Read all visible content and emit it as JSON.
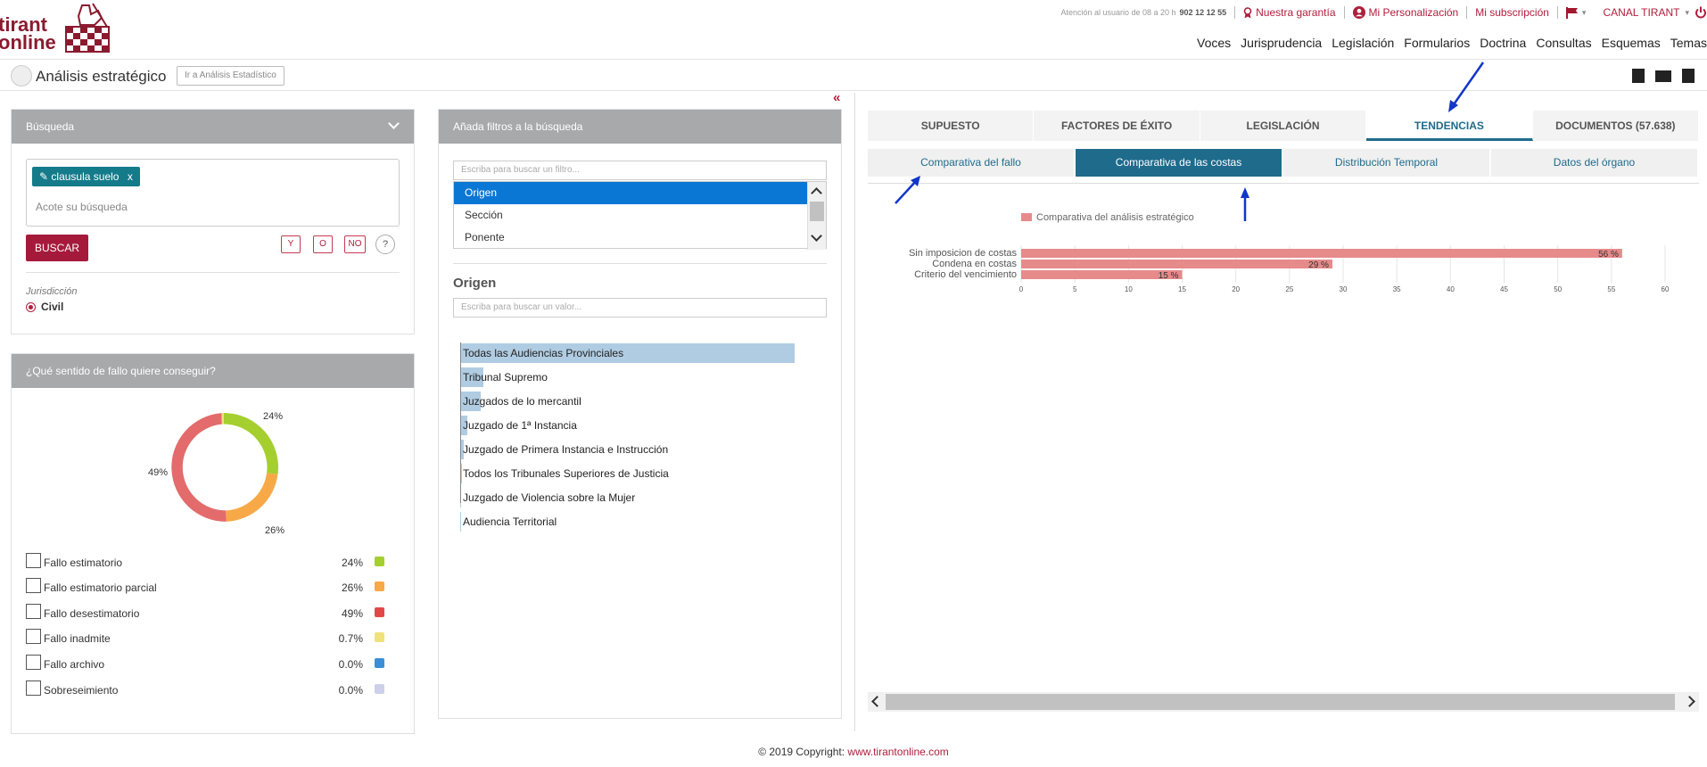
{
  "brand": {
    "line1": "tirant",
    "line2": "online"
  },
  "toplinks": {
    "attention": "Atención al usuario de 08 a 20 h",
    "phone": "902 12 12 55",
    "guarantee": "Nuestra garantía",
    "personalization": "Mi Personalización",
    "subscription": "Mi subscripción",
    "channel": "CANAL TIRANT"
  },
  "nav": [
    "Voces",
    "Jurisprudencia",
    "Legislación",
    "Formularios",
    "Doctrina",
    "Consultas",
    "Esquemas",
    "Temas"
  ],
  "subbar": {
    "title": "Análisis estratégico",
    "goto": "Ir a Análisis Estadístico"
  },
  "search_panel": {
    "title": "Búsqueda",
    "tag": "clausula suelo",
    "tag_close": "x",
    "refine_placeholder": "Acote su búsqueda",
    "search_button": "BUSCAR",
    "op_y": "Y",
    "op_o": "O",
    "op_no": "NO",
    "help": "?",
    "jurisdiction_label": "Jurisdicción",
    "jurisdiction_value": "Civil"
  },
  "verdict_panel": {
    "title": "¿Qué sentido de fallo quiere conseguir?",
    "donut_labels": {
      "a": "24%",
      "b": "26%",
      "c": "49%"
    },
    "legend": [
      {
        "label": "Fallo estimatorio",
        "pct": "24%",
        "color": "#a4cf2e"
      },
      {
        "label": "Fallo estimatorio parcial",
        "pct": "26%",
        "color": "#f7a947"
      },
      {
        "label": "Fallo desestimatorio",
        "pct": "49%",
        "color": "#e36b6b"
      },
      {
        "label": "Fallo inadmite",
        "pct": "0.7%",
        "color": "#efe27a"
      },
      {
        "label": "Fallo archivo",
        "pct": "0.0%",
        "color": "#3a8fd6"
      },
      {
        "label": "Sobreseimiento",
        "pct": "0.0%",
        "color": "#cdd0e8"
      }
    ]
  },
  "filters_panel": {
    "title": "Añada filtros a la búsqueda",
    "filter_placeholder": "Escriba para buscar un filtro...",
    "filters": [
      "Origen",
      "Sección",
      "Ponente"
    ],
    "origin_title": "Origen",
    "value_placeholder": "Escriba para buscar un valor...",
    "origins": [
      {
        "label": "Todas las Audiencias Provinciales",
        "share": 1.0
      },
      {
        "label": "Tribunal Supremo",
        "share": 0.07
      },
      {
        "label": "Juzgados de lo mercantil",
        "share": 0.06
      },
      {
        "label": "Juzgado de 1ª Instancia",
        "share": 0.02
      },
      {
        "label": "Juzgado de Primera Instancia e Instrucción",
        "share": 0.01
      },
      {
        "label": "Todos los Tribunales Superiores de Justicia",
        "share": 0.005
      },
      {
        "label": "Juzgado de Violencia sobre la Mujer",
        "share": 0.003
      },
      {
        "label": "Audiencia Territorial",
        "share": 0.002
      }
    ]
  },
  "right": {
    "collapse": "«",
    "tabs": [
      "SUPUESTO",
      "FACTORES DE ÉXITO",
      "LEGISLACIÓN",
      "TENDENCIAS",
      "DOCUMENTOS (57.638)"
    ],
    "active_tab": 3,
    "subtabs": [
      "Comparativa del fallo",
      "Comparativa de las costas",
      "Distribución Temporal",
      "Datos del órgano"
    ],
    "active_subtab": 1
  },
  "chart_data": {
    "type": "bar",
    "orientation": "horizontal",
    "title": "",
    "series": [
      {
        "name": "Comparativa del análisis estratégico",
        "color": "#e68a8a"
      }
    ],
    "categories": [
      "Sin imposicion de costas",
      "Condena en costas",
      "Criterio del vencimiento"
    ],
    "values": [
      56,
      29,
      15
    ],
    "value_labels": [
      "56 %",
      "29 %",
      "15 %"
    ],
    "xlim": [
      0,
      60
    ],
    "xticks": [
      "0",
      "5",
      "10",
      "15",
      "20",
      "25",
      "30",
      "35",
      "40",
      "45",
      "50",
      "55",
      "60"
    ],
    "grid": true,
    "legend": "top-left"
  },
  "footer": {
    "text": "© 2019 Copyright: ",
    "link": "www.tirantonline.com"
  }
}
